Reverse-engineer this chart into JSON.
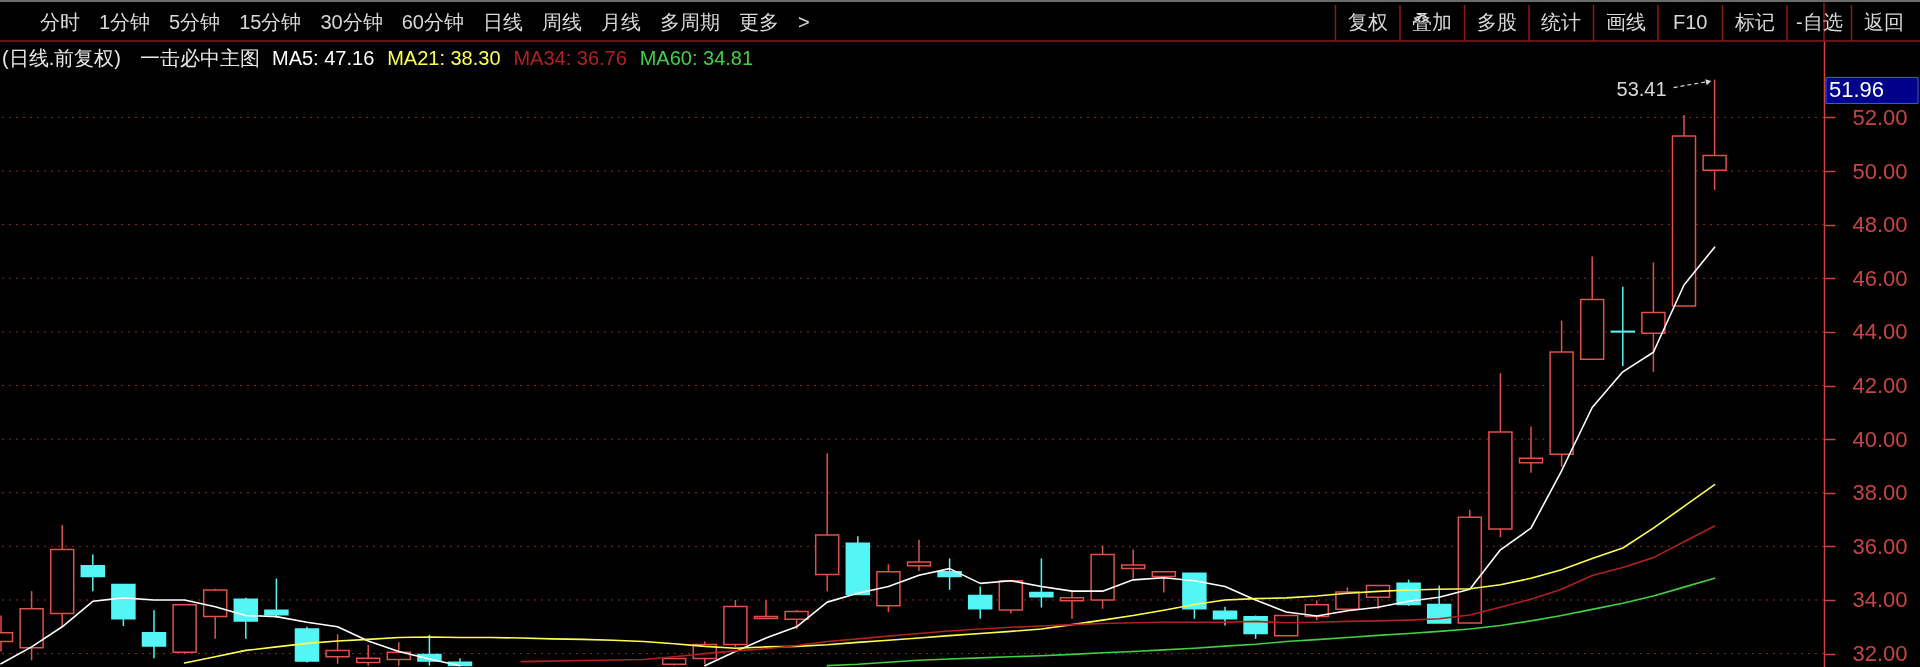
{
  "chart_data": {
    "type": "candlestick",
    "title": "(日线.前复权)",
    "subtitle": "一击必中主图",
    "categories": [
      null,
      null,
      null,
      null,
      null,
      null,
      null,
      null,
      null,
      null,
      null,
      null,
      null,
      null,
      null,
      null,
      null,
      null,
      null,
      null,
      null,
      null,
      null,
      null,
      null,
      null,
      null,
      null,
      null,
      null,
      null,
      null,
      null,
      null,
      null,
      null,
      null,
      null,
      null,
      null,
      null,
      null,
      null,
      null,
      null,
      null,
      null,
      null,
      null,
      null,
      null,
      null,
      null,
      null,
      null,
      null,
      null
    ],
    "ohlc": [
      [
        32.45,
        33.42,
        32.08,
        32.78
      ],
      [
        32.22,
        34.33,
        31.75,
        33.67
      ],
      [
        33.5,
        36.8,
        33.0,
        35.88
      ],
      [
        35.28,
        35.7,
        34.33,
        34.88
      ],
      [
        34.58,
        34.6,
        33.03,
        33.3
      ],
      [
        32.78,
        33.62,
        31.83,
        32.28
      ],
      [
        32.05,
        33.85,
        32.0,
        33.82
      ],
      [
        33.38,
        34.42,
        32.55,
        34.37
      ],
      [
        34.03,
        34.08,
        32.55,
        33.22
      ],
      [
        33.62,
        34.8,
        33.33,
        33.45
      ],
      [
        32.92,
        33.0,
        31.67,
        31.72
      ],
      [
        31.88,
        32.72,
        31.62,
        32.12
      ],
      [
        31.67,
        32.33,
        31.55,
        31.83
      ],
      [
        31.78,
        32.42,
        31.55,
        32.05
      ],
      [
        31.97,
        32.7,
        31.55,
        31.72
      ],
      [
        31.68,
        31.83,
        31.55,
        31.56
      ],
      null,
      null,
      null,
      null,
      null,
      null,
      [
        31.6,
        31.82,
        31.55,
        31.82
      ],
      [
        31.82,
        32.45,
        31.6,
        32.34
      ],
      [
        32.34,
        34.0,
        32.25,
        33.76
      ],
      [
        33.31,
        34.0,
        33.28,
        33.38
      ],
      [
        33.28,
        33.62,
        32.92,
        33.57
      ],
      [
        34.95,
        39.47,
        34.33,
        36.42
      ],
      [
        36.12,
        36.38,
        34.2,
        34.2
      ],
      [
        33.78,
        35.33,
        33.55,
        35.05
      ],
      [
        35.28,
        36.25,
        35.08,
        35.42
      ],
      [
        35.05,
        35.55,
        34.38,
        34.88
      ],
      [
        34.17,
        34.5,
        33.3,
        33.67
      ],
      [
        33.63,
        34.72,
        33.5,
        34.72
      ],
      [
        34.28,
        35.55,
        33.72,
        34.12
      ],
      [
        33.97,
        34.33,
        33.3,
        34.08
      ],
      [
        34.0,
        36.03,
        33.67,
        35.7
      ],
      [
        35.17,
        35.88,
        34.8,
        35.3
      ],
      [
        34.88,
        35.05,
        34.28,
        35.05
      ],
      [
        35.0,
        35.0,
        33.3,
        33.67
      ],
      [
        33.58,
        33.75,
        33.05,
        33.3
      ],
      [
        33.37,
        33.42,
        32.55,
        32.75
      ],
      [
        32.67,
        33.42,
        32.67,
        33.42
      ],
      [
        33.38,
        33.98,
        33.24,
        33.82
      ],
      [
        33.65,
        34.47,
        33.58,
        34.3
      ],
      [
        34.1,
        34.54,
        33.66,
        34.54
      ],
      [
        34.62,
        34.76,
        33.78,
        33.83
      ],
      [
        33.83,
        34.54,
        33.14,
        33.14
      ],
      [
        33.14,
        37.37,
        33.14,
        37.09
      ],
      [
        36.65,
        42.46,
        36.34,
        40.27
      ],
      [
        39.12,
        40.47,
        38.75,
        39.29
      ],
      [
        39.44,
        44.42,
        38.97,
        43.25
      ],
      [
        42.98,
        46.81,
        42.98,
        45.21
      ],
      [
        44.02,
        45.68,
        42.73,
        44.0
      ],
      [
        43.95,
        46.59,
        42.51,
        44.72
      ],
      [
        44.97,
        52.09,
        44.97,
        51.31
      ],
      [
        50.03,
        53.41,
        49.29,
        50.58
      ]
    ],
    "colors": [
      "#e0504c",
      "#e0504c",
      "#e0504c",
      "#54f5f5",
      "#54f5f5",
      "#54f5f5",
      "#e0504c",
      "#e0504c",
      "#54f5f5",
      "#54f5f5",
      "#54f5f5",
      "#e0504c",
      "#e0504c",
      "#e0504c",
      "#54f5f5",
      "#54f5f5",
      null,
      null,
      null,
      null,
      null,
      null,
      "#e0504c",
      "#e0504c",
      "#e0504c",
      "#e0504c",
      "#e0504c",
      "#e0504c",
      "#54f5f5",
      "#e0504c",
      "#e0504c",
      "#54f5f5",
      "#54f5f5",
      "#e0504c",
      "#54f5f5",
      "#e0504c",
      "#e0504c",
      "#e0504c",
      "#e0504c",
      "#54f5f5",
      "#54f5f5",
      "#54f5f5",
      "#e0504c",
      "#e0504c",
      "#e0504c",
      "#e0504c",
      "#54f5f5",
      "#54f5f5",
      "#e0504c",
      "#e0504c",
      "#e0504c",
      "#e0504c",
      "#e0504c",
      "#54f5f5",
      "#e0504c",
      "#e0504c",
      "#e0504c"
    ],
    "series": [
      {
        "name": "MA5: 47.16",
        "type": "line",
        "color": "#ffffff",
        "values": [
          31.62,
          32.25,
          33.0,
          33.95,
          34.08,
          34.0,
          34.0,
          33.75,
          33.42,
          33.38,
          33.17,
          33.0,
          32.47,
          32.08,
          31.8,
          31.55,
          null,
          null,
          null,
          null,
          null,
          null,
          null,
          31.55,
          32.08,
          32.58,
          33.0,
          33.92,
          34.25,
          34.5,
          34.92,
          35.17,
          34.62,
          34.72,
          34.5,
          34.33,
          34.33,
          34.75,
          34.83,
          34.72,
          34.5,
          34.0,
          33.55,
          33.4,
          33.6,
          33.73,
          33.95,
          34.1,
          34.4,
          35.87,
          36.68,
          38.82,
          41.18,
          42.51,
          43.24,
          45.75,
          47.16
        ]
      },
      {
        "name": "MA21: 38.30",
        "type": "line",
        "color": "#ffff50",
        "values": [
          null,
          null,
          null,
          null,
          null,
          null,
          31.65,
          31.88,
          32.12,
          32.25,
          32.38,
          32.47,
          32.53,
          32.6,
          32.62,
          32.6,
          32.6,
          32.58,
          32.55,
          32.53,
          32.5,
          32.45,
          32.37,
          32.27,
          32.2,
          32.25,
          32.27,
          32.33,
          32.42,
          32.5,
          32.58,
          32.67,
          32.75,
          32.83,
          32.92,
          33.08,
          33.25,
          33.42,
          33.62,
          33.83,
          34.0,
          34.05,
          34.08,
          34.15,
          34.25,
          34.32,
          34.37,
          34.4,
          34.42,
          34.57,
          34.81,
          35.13,
          35.55,
          35.94,
          36.68,
          37.49,
          38.3
        ]
      },
      {
        "name": "MA34: 36.76",
        "type": "line",
        "color": "#b02020",
        "values": [
          null,
          null,
          null,
          null,
          null,
          null,
          null,
          null,
          null,
          null,
          null,
          null,
          null,
          null,
          null,
          null,
          null,
          31.7,
          31.72,
          31.74,
          31.76,
          31.78,
          31.88,
          32.0,
          32.1,
          32.18,
          32.3,
          32.45,
          32.55,
          32.65,
          32.75,
          32.84,
          32.92,
          32.98,
          33.03,
          33.08,
          33.12,
          33.15,
          33.17,
          33.17,
          33.17,
          33.2,
          33.15,
          33.17,
          33.2,
          33.22,
          33.25,
          33.3,
          33.44,
          33.73,
          34.03,
          34.4,
          34.91,
          35.21,
          35.58,
          36.17,
          36.76
        ]
      },
      {
        "name": "MA60: 34.81",
        "type": "line",
        "color": "#40d040",
        "values": [
          null,
          null,
          null,
          null,
          null,
          null,
          null,
          null,
          null,
          null,
          null,
          null,
          null,
          null,
          null,
          null,
          null,
          null,
          null,
          null,
          null,
          null,
          null,
          null,
          null,
          null,
          null,
          31.55,
          31.6,
          31.68,
          31.75,
          31.8,
          31.84,
          31.88,
          31.92,
          31.97,
          32.03,
          32.08,
          32.14,
          32.2,
          32.28,
          32.35,
          32.45,
          32.52,
          32.6,
          32.68,
          32.75,
          32.83,
          32.92,
          33.05,
          33.22,
          33.42,
          33.65,
          33.88,
          34.15,
          34.48,
          34.81
        ]
      }
    ],
    "ylim": [
      31.5,
      54.85
    ],
    "yticks": [
      {
        "value": 32,
        "label": "32.00"
      },
      {
        "value": 34,
        "label": "34.00"
      },
      {
        "value": 36,
        "label": "36.00"
      },
      {
        "value": 38,
        "label": "38.00"
      },
      {
        "value": 40,
        "label": "40.00"
      },
      {
        "value": 42,
        "label": "42.00"
      },
      {
        "value": 44,
        "label": "44.00"
      },
      {
        "value": 46,
        "label": "46.00"
      },
      {
        "value": 48,
        "label": "48.00"
      },
      {
        "value": 50,
        "label": "50.00"
      },
      {
        "value": 52,
        "label": "52.00"
      }
    ],
    "grid": "y",
    "tick_labels": "y",
    "annotations": [
      "分时 1分钟 5分钟 15分钟 30分钟 60分钟 日线 周线 月线 多周期 更多 >",
      "复权 叠加 多股 统计 画线 F10 标记 -自选 返回",
      "53.41",
      "51.96"
    ]
  }
}
